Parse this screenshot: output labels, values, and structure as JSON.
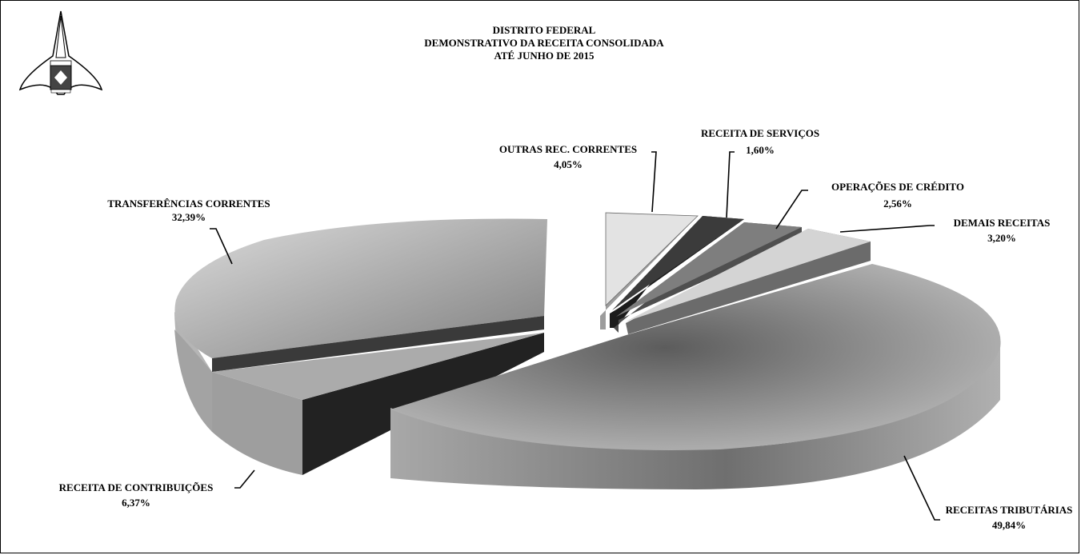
{
  "chart_data": {
    "type": "pie",
    "style": "3d-exploded",
    "title": [
      "DISTRITO FEDERAL",
      "DEMONSTRATIVO DA RECEITA  CONSOLIDADA",
      "ATÉ  JUNHO  DE 2015"
    ],
    "slices": [
      {
        "label": "RECEITAS TRIBUTÁRIAS",
        "pct_label": "49,84%",
        "value": 49.84,
        "color": "#8c8c8c"
      },
      {
        "label": "RECEITA DE CONTRIBUIÇÕES",
        "pct_label": "6,37%",
        "value": 6.37,
        "color": "#2b2b2b"
      },
      {
        "label": "TRANSFERÊNCIAS CORRENTES",
        "pct_label": "32,39%",
        "value": 32.39,
        "color": "#bdbdbd"
      },
      {
        "label": "OUTRAS REC. CORRENTES",
        "pct_label": "4,05%",
        "value": 4.05,
        "color": "#e0e0e0"
      },
      {
        "label": "RECEITA DE SERVIÇOS",
        "pct_label": "1,60%",
        "value": 1.6,
        "color": "#333333"
      },
      {
        "label": "OPERAÇÕES DE CRÉDITO",
        "pct_label": "2,56%",
        "value": 2.56,
        "color": "#7a7a7a"
      },
      {
        "label": "DEMAIS RECEITAS",
        "pct_label": "3,20%",
        "value": 3.2,
        "color": "#d2d2d2"
      }
    ]
  },
  "logo": {
    "name": "brasao-distrito-federal"
  }
}
